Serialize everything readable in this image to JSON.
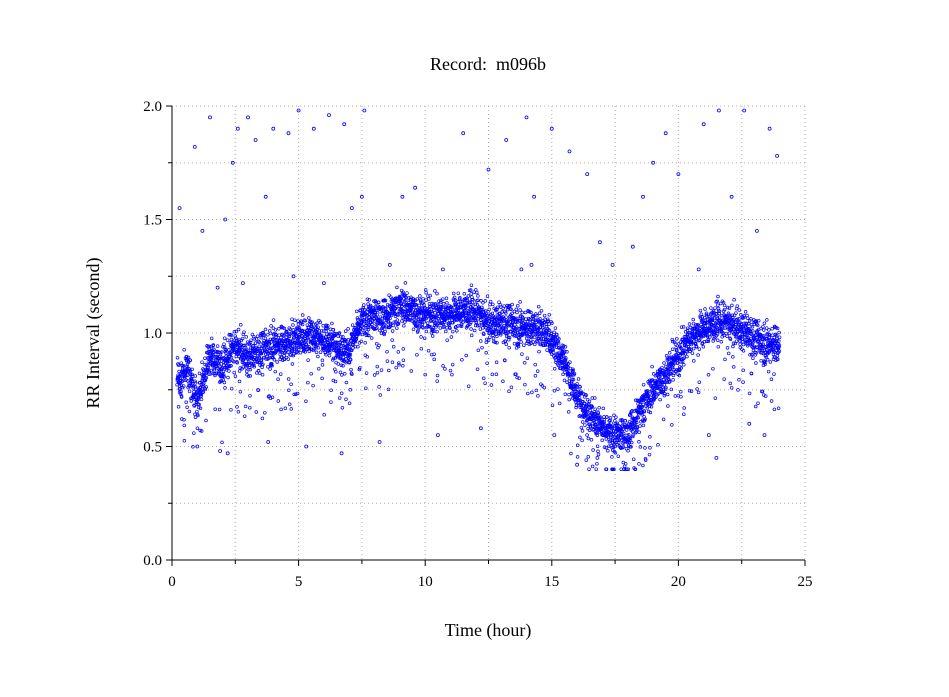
{
  "chart_data": {
    "type": "scatter",
    "title": "Record:  m096b",
    "xlabel": "Time (hour)",
    "ylabel": "RR Interval (second)",
    "xlim": [
      0,
      25
    ],
    "ylim": [
      0,
      2.0
    ],
    "x_ticks": [
      0,
      5,
      10,
      15,
      20,
      25
    ],
    "x_tick_labels": [
      "0",
      "5",
      "10",
      "15",
      "20",
      "25"
    ],
    "y_ticks": [
      0.0,
      0.5,
      1.0,
      1.5,
      2.0
    ],
    "y_tick_labels": [
      "0.0",
      "0.5",
      "1.0",
      "1.5",
      "2.0"
    ],
    "grid": true,
    "legend": "none",
    "marker": "hollow-circle",
    "color": "#0000ff",
    "trend": {
      "x": [
        0.2,
        0.6,
        1.0,
        1.5,
        2.0,
        2.5,
        3.0,
        3.5,
        4.0,
        4.5,
        5.0,
        5.5,
        6.0,
        6.5,
        7.0,
        7.5,
        8.0,
        8.5,
        9.0,
        9.5,
        10.0,
        10.5,
        11.0,
        11.5,
        12.0,
        12.5,
        13.0,
        13.5,
        14.0,
        14.5,
        15.0,
        15.5,
        16.0,
        16.5,
        17.0,
        17.5,
        18.0,
        18.5,
        19.0,
        19.5,
        20.0,
        20.5,
        21.0,
        21.5,
        22.0,
        22.5,
        23.0,
        23.5,
        24.0
      ],
      "y": [
        0.78,
        0.85,
        0.7,
        0.9,
        0.85,
        0.95,
        0.9,
        0.92,
        0.95,
        0.95,
        0.98,
        1.0,
        0.97,
        0.95,
        0.92,
        1.05,
        1.08,
        1.08,
        1.12,
        1.1,
        1.08,
        1.08,
        1.08,
        1.1,
        1.1,
        1.05,
        1.05,
        1.04,
        1.02,
        1.02,
        0.98,
        0.88,
        0.72,
        0.65,
        0.57,
        0.55,
        0.56,
        0.66,
        0.75,
        0.82,
        0.9,
        0.98,
        1.02,
        1.05,
        1.05,
        1.02,
        0.98,
        0.95,
        0.95
      ]
    },
    "spread": 0.08,
    "x_end": 24.0,
    "outliers": [
      [
        0.3,
        1.55
      ],
      [
        0.9,
        1.82
      ],
      [
        1.2,
        1.45
      ],
      [
        1.5,
        1.95
      ],
      [
        1.8,
        1.2
      ],
      [
        2.1,
        1.5
      ],
      [
        2.4,
        1.75
      ],
      [
        2.6,
        1.9
      ],
      [
        3.0,
        1.95
      ],
      [
        3.3,
        1.85
      ],
      [
        3.7,
        1.6
      ],
      [
        4.0,
        1.9
      ],
      [
        4.6,
        1.88
      ],
      [
        5.0,
        1.98
      ],
      [
        5.6,
        1.9
      ],
      [
        6.2,
        1.96
      ],
      [
        6.8,
        1.92
      ],
      [
        7.1,
        1.55
      ],
      [
        7.5,
        1.6
      ],
      [
        7.6,
        1.98
      ],
      [
        9.1,
        1.6
      ],
      [
        9.6,
        1.64
      ],
      [
        11.5,
        1.88
      ],
      [
        12.5,
        1.72
      ],
      [
        13.2,
        1.85
      ],
      [
        14.0,
        1.95
      ],
      [
        14.3,
        1.6
      ],
      [
        15.0,
        1.9
      ],
      [
        15.7,
        1.8
      ],
      [
        16.4,
        1.7
      ],
      [
        16.9,
        1.4
      ],
      [
        17.4,
        1.3
      ],
      [
        18.2,
        1.38
      ],
      [
        18.6,
        1.6
      ],
      [
        19.0,
        1.75
      ],
      [
        19.5,
        1.88
      ],
      [
        20.0,
        1.7
      ],
      [
        21.0,
        1.92
      ],
      [
        21.6,
        1.98
      ],
      [
        22.1,
        1.6
      ],
      [
        22.6,
        1.98
      ],
      [
        23.1,
        1.45
      ],
      [
        23.6,
        1.9
      ],
      [
        23.9,
        1.78
      ],
      [
        1.0,
        0.5
      ],
      [
        1.9,
        0.48
      ],
      [
        2.2,
        0.47
      ],
      [
        3.8,
        0.52
      ],
      [
        5.3,
        0.5
      ],
      [
        6.7,
        0.47
      ],
      [
        8.2,
        0.52
      ],
      [
        10.5,
        0.55
      ],
      [
        12.2,
        0.58
      ],
      [
        15.1,
        0.55
      ],
      [
        16.0,
        0.42
      ],
      [
        16.8,
        0.45
      ],
      [
        21.2,
        0.55
      ],
      [
        21.5,
        0.45
      ],
      [
        22.8,
        0.6
      ],
      [
        23.4,
        0.55
      ],
      [
        2.8,
        1.22
      ],
      [
        4.8,
        1.25
      ],
      [
        6.0,
        1.22
      ],
      [
        8.6,
        1.3
      ],
      [
        10.7,
        1.28
      ],
      [
        13.8,
        1.28
      ],
      [
        14.2,
        1.3
      ],
      [
        20.8,
        1.28
      ]
    ]
  }
}
